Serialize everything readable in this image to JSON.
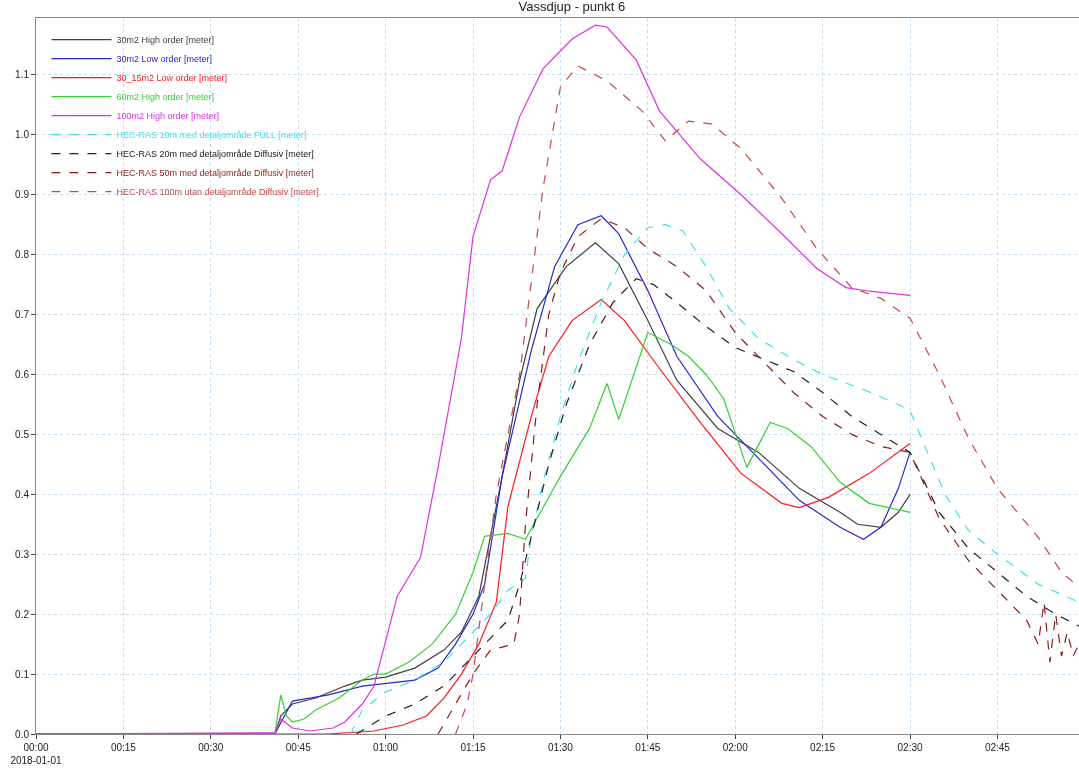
{
  "chart_data": {
    "type": "line",
    "title": "Vassdjup - punkt 6",
    "xlim": [
      "2018-01-01T00:00",
      "2018-01-01T02:59"
    ],
    "ylim": [
      0,
      1.195
    ],
    "xticks": [
      {
        "value": "2018-01-01T00:00",
        "label": "00:00\n2018-01-01"
      },
      {
        "value": "2018-01-01T00:15",
        "label": "00:15"
      },
      {
        "value": "2018-01-01T00:30",
        "label": "00:30"
      },
      {
        "value": "2018-01-01T00:45",
        "label": "00:45"
      },
      {
        "value": "2018-01-01T01:00",
        "label": "01:00"
      },
      {
        "value": "2018-01-01T01:15",
        "label": "01:15"
      },
      {
        "value": "2018-01-01T01:30",
        "label": "01:30"
      },
      {
        "value": "2018-01-01T01:45",
        "label": "01:45"
      },
      {
        "value": "2018-01-01T02:00",
        "label": "02:00"
      },
      {
        "value": "2018-01-01T02:15",
        "label": "02:15"
      },
      {
        "value": "2018-01-01T02:30",
        "label": "02:30"
      },
      {
        "value": "2018-01-01T02:45",
        "label": "02:45"
      }
    ],
    "yticks": [
      {
        "value": 0,
        "label": "0.0"
      },
      0.1,
      0.2,
      0.3,
      0.4,
      0.5,
      0.6,
      0.7,
      0.8,
      0.9,
      {
        "value": 1,
        "label": "1.0"
      },
      1.1
    ],
    "grid": true,
    "legend": "top left",
    "series": [
      {
        "name": "30m2 High order [meter]",
        "color": "#404040",
        "line_style": "solid",
        "x": [
          "2018-01-01T00:00",
          "2018-01-01T00:41",
          "2018-01-01T00:42",
          "2018-01-01T00:44",
          "2018-01-01T00:48",
          "2018-01-01T00:53",
          "2018-01-01T00:56",
          "2018-01-01T01:00",
          "2018-01-01T01:05",
          "2018-01-01T01:10",
          "2018-01-01T01:13",
          "2018-01-01T01:16",
          "2018-01-01T01:20",
          "2018-01-01T01:23",
          "2018-01-01T01:26",
          "2018-01-01T01:31",
          "2018-01-01T01:36",
          "2018-01-01T01:40",
          "2018-01-01T01:45",
          "2018-01-01T01:50",
          "2018-01-01T01:57",
          "2018-01-01T02:04",
          "2018-01-01T02:11",
          "2018-01-01T02:18",
          "2018-01-01T02:21",
          "2018-01-01T02:25",
          "2018-01-01T02:28",
          "2018-01-01T02:30"
        ],
        "values": [
          0,
          0,
          0.03,
          0.05,
          0.06,
          0.08,
          0.09,
          0.095,
          0.11,
          0.14,
          0.17,
          0.23,
          0.43,
          0.59,
          0.71,
          0.78,
          0.82,
          0.785,
          0.69,
          0.59,
          0.51,
          0.47,
          0.41,
          0.37,
          0.35,
          0.345,
          0.37,
          0.4
        ]
      },
      {
        "name": "30m2 Low order [meter]",
        "color": "#2828d0",
        "line_style": "solid",
        "x": [
          "2018-01-01T00:00",
          "2018-01-01T00:41",
          "2018-01-01T00:44",
          "2018-01-01T00:50",
          "2018-01-01T00:56",
          "2018-01-01T01:05",
          "2018-01-01T01:09",
          "2018-01-01T01:12",
          "2018-01-01T01:15",
          "2018-01-01T01:17",
          "2018-01-01T01:20",
          "2018-01-01T01:25",
          "2018-01-01T01:29",
          "2018-01-01T01:33",
          "2018-01-01T01:37",
          "2018-01-01T01:40",
          "2018-01-01T01:45",
          "2018-01-01T01:50",
          "2018-01-01T01:57",
          "2018-01-01T02:04",
          "2018-01-01T02:11",
          "2018-01-01T02:18",
          "2018-01-01T02:22",
          "2018-01-01T02:25",
          "2018-01-01T02:28",
          "2018-01-01T02:30"
        ],
        "values": [
          0,
          0,
          0.055,
          0.065,
          0.08,
          0.09,
          0.11,
          0.15,
          0.2,
          0.25,
          0.43,
          0.64,
          0.78,
          0.85,
          0.865,
          0.835,
          0.74,
          0.63,
          0.53,
          0.46,
          0.39,
          0.345,
          0.325,
          0.345,
          0.41,
          0.47
        ]
      },
      {
        "name": "30_15m2 Low order [meter]",
        "color": "#ff1a1a",
        "line_style": "solid",
        "x": [
          "2018-01-01T00:00",
          "2018-01-01T00:50",
          "2018-01-01T00:58",
          "2018-01-01T01:03",
          "2018-01-01T01:07",
          "2018-01-01T01:10",
          "2018-01-01T01:13",
          "2018-01-01T01:16",
          "2018-01-01T01:19",
          "2018-01-01T01:21",
          "2018-01-01T01:25",
          "2018-01-01T01:28",
          "2018-01-01T01:32",
          "2018-01-01T01:37",
          "2018-01-01T01:41",
          "2018-01-01T01:47",
          "2018-01-01T01:54",
          "2018-01-01T02:01",
          "2018-01-01T02:08",
          "2018-01-01T02:11",
          "2018-01-01T02:16",
          "2018-01-01T02:23",
          "2018-01-01T02:30"
        ],
        "values": [
          0,
          0,
          0.005,
          0.015,
          0.03,
          0.06,
          0.1,
          0.15,
          0.22,
          0.38,
          0.53,
          0.63,
          0.69,
          0.725,
          0.69,
          0.61,
          0.52,
          0.435,
          0.385,
          0.378,
          0.395,
          0.435,
          0.485
        ]
      },
      {
        "name": "60m2 High order [meter]",
        "color": "#35d035",
        "line_style": "solid",
        "x": [
          "2018-01-01T00:00",
          "2018-01-01T00:41",
          "2018-01-01T00:42",
          "2018-01-01T00:43",
          "2018-01-01T00:44",
          "2018-01-01T00:46",
          "2018-01-01T00:48",
          "2018-01-01T00:52",
          "2018-01-01T00:56",
          "2018-01-01T00:58",
          "2018-01-01T01:00",
          "2018-01-01T01:04",
          "2018-01-01T01:08",
          "2018-01-01T01:12",
          "2018-01-01T01:15",
          "2018-01-01T01:17",
          "2018-01-01T01:21",
          "2018-01-01T01:24",
          "2018-01-01T01:30",
          "2018-01-01T01:35",
          "2018-01-01T01:38",
          "2018-01-01T01:40",
          "2018-01-01T01:45",
          "2018-01-01T01:49",
          "2018-01-01T01:52",
          "2018-01-01T01:55",
          "2018-01-01T01:58",
          "2018-01-01T02:02",
          "2018-01-01T02:06",
          "2018-01-01T02:09",
          "2018-01-01T02:13",
          "2018-01-01T02:18",
          "2018-01-01T02:23",
          "2018-01-01T02:30"
        ],
        "values": [
          0,
          0,
          0.065,
          0.03,
          0.02,
          0.025,
          0.04,
          0.06,
          0.09,
          0.1,
          0.1,
          0.12,
          0.15,
          0.2,
          0.27,
          0.33,
          0.335,
          0.325,
          0.43,
          0.51,
          0.585,
          0.525,
          0.67,
          0.65,
          0.63,
          0.6,
          0.56,
          0.445,
          0.52,
          0.51,
          0.48,
          0.42,
          0.385,
          0.37
        ]
      },
      {
        "name": "100m2 High order [meter]",
        "color": "#e030e0",
        "line_style": "solid",
        "x": [
          "2018-01-01T00:00",
          "2018-01-01T00:41",
          "2018-01-01T00:42",
          "2018-01-01T00:44",
          "2018-01-01T00:47",
          "2018-01-01T00:51",
          "2018-01-01T00:53",
          "2018-01-01T00:56",
          "2018-01-01T00:58",
          "2018-01-01T01:02",
          "2018-01-01T01:06",
          "2018-01-01T01:09",
          "2018-01-01T01:13",
          "2018-01-01T01:15",
          "2018-01-01T01:18",
          "2018-01-01T01:20",
          "2018-01-01T01:23",
          "2018-01-01T01:27",
          "2018-01-01T01:32",
          "2018-01-01T01:36",
          "2018-01-01T01:38",
          "2018-01-01T01:43",
          "2018-01-01T01:47",
          "2018-01-01T01:54",
          "2018-01-01T02:01",
          "2018-01-01T02:08",
          "2018-01-01T02:14",
          "2018-01-01T02:19",
          "2018-01-01T02:23",
          "2018-01-01T02:30"
        ],
        "values": [
          0,
          0.002,
          0.025,
          0.01,
          0.005,
          0.01,
          0.02,
          0.05,
          0.08,
          0.23,
          0.295,
          0.445,
          0.66,
          0.83,
          0.925,
          0.94,
          1.03,
          1.11,
          1.16,
          1.183,
          1.18,
          1.125,
          1.04,
          0.96,
          0.9,
          0.835,
          0.777,
          0.745,
          0.739,
          0.732
        ]
      },
      {
        "name": "HEC-RAS 10m med detaljområde FULL [meter]",
        "color": "#40e0e8",
        "line_style": "dashed",
        "x": [
          "2018-01-01T00:54",
          "2018-01-01T00:56",
          "2018-01-01T01:00",
          "2018-01-01T01:05",
          "2018-01-01T01:10",
          "2018-01-01T01:14",
          "2018-01-01T01:18",
          "2018-01-01T01:21",
          "2018-01-01T01:24",
          "2018-01-01T01:25",
          "2018-01-01T01:27",
          "2018-01-01T01:30",
          "2018-01-01T01:33",
          "2018-01-01T01:37",
          "2018-01-01T01:41",
          "2018-01-01T01:45",
          "2018-01-01T01:48",
          "2018-01-01T01:51",
          "2018-01-01T01:55",
          "2018-01-01T01:59",
          "2018-01-01T02:04",
          "2018-01-01T02:10",
          "2018-01-01T02:15",
          "2018-01-01T02:22",
          "2018-01-01T02:28",
          "2018-01-01T02:30",
          "2018-01-01T02:33",
          "2018-01-01T02:36",
          "2018-01-01T02:40",
          "2018-01-01T02:45",
          "2018-01-01T02:52",
          "2018-01-01T02:59"
        ],
        "values": [
          0,
          0.04,
          0.07,
          0.09,
          0.12,
          0.16,
          0.2,
          0.24,
          0.26,
          0.33,
          0.42,
          0.53,
          0.62,
          0.72,
          0.8,
          0.845,
          0.85,
          0.84,
          0.78,
          0.71,
          0.66,
          0.625,
          0.6,
          0.575,
          0.55,
          0.54,
          0.47,
          0.4,
          0.34,
          0.3,
          0.25,
          0.22
        ]
      },
      {
        "name": "HEC-RAS 20m med detaljområde Diffusiv [meter]",
        "color": "#202020",
        "line_style": "dashed",
        "x": [
          "2018-01-01T00:55",
          "2018-01-01T01:00",
          "2018-01-01T01:05",
          "2018-01-01T01:10",
          "2018-01-01T01:14",
          "2018-01-01T01:18",
          "2018-01-01T01:21",
          "2018-01-01T01:23",
          "2018-01-01T01:25",
          "2018-01-01T01:28",
          "2018-01-01T01:31",
          "2018-01-01T01:35",
          "2018-01-01T01:39",
          "2018-01-01T01:43",
          "2018-01-01T01:46",
          "2018-01-01T01:50",
          "2018-01-01T01:55",
          "2018-01-01T02:00",
          "2018-01-01T02:05",
          "2018-01-01T02:10",
          "2018-01-01T02:15",
          "2018-01-01T02:20",
          "2018-01-01T02:25",
          "2018-01-01T02:30",
          "2018-01-01T02:35",
          "2018-01-01T02:40",
          "2018-01-01T02:45",
          "2018-01-01T02:50",
          "2018-01-01T02:55",
          "2018-01-01T02:59"
        ],
        "values": [
          0,
          0.03,
          0.05,
          0.08,
          0.12,
          0.16,
          0.19,
          0.25,
          0.33,
          0.45,
          0.55,
          0.65,
          0.72,
          0.76,
          0.75,
          0.72,
          0.68,
          0.645,
          0.625,
          0.605,
          0.57,
          0.53,
          0.5,
          0.47,
          0.37,
          0.31,
          0.27,
          0.23,
          0.2,
          0.18
        ]
      },
      {
        "name": "HEC-RAS 50m med detaljområde Diffusiv [meter]",
        "color": "#8b1c1c",
        "line_style": "dashed",
        "x": [
          "2018-01-01T01:09",
          "2018-01-01T01:12",
          "2018-01-01T01:15",
          "2018-01-01T01:18",
          "2018-01-01T01:22",
          "2018-01-01T01:23",
          "2018-01-01T01:24",
          "2018-01-01T01:26",
          "2018-01-01T01:28",
          "2018-01-01T01:30",
          "2018-01-01T01:33",
          "2018-01-01T01:37",
          "2018-01-01T01:41",
          "2018-01-01T01:45",
          "2018-01-01T01:50",
          "2018-01-01T01:55",
          "2018-01-01T02:00",
          "2018-01-01T02:05",
          "2018-01-01T02:10",
          "2018-01-01T02:15",
          "2018-01-01T02:20",
          "2018-01-01T02:25",
          "2018-01-01T02:30",
          "2018-01-01T02:35",
          "2018-01-01T02:40",
          "2018-01-01T02:45",
          "2018-01-01T02:50",
          "2018-01-01T02:52",
          "2018-01-01T02:53",
          "2018-01-01T02:54",
          "2018-01-01T02:55",
          "2018-01-01T02:56",
          "2018-01-01T02:57",
          "2018-01-01T02:58",
          "2018-01-01T02:59"
        ],
        "values": [
          0,
          0.05,
          0.1,
          0.14,
          0.15,
          0.2,
          0.35,
          0.55,
          0.7,
          0.77,
          0.83,
          0.86,
          0.845,
          0.81,
          0.78,
          0.74,
          0.67,
          0.62,
          0.57,
          0.53,
          0.5,
          0.48,
          0.47,
          0.36,
          0.29,
          0.24,
          0.19,
          0.15,
          0.22,
          0.12,
          0.2,
          0.13,
          0.17,
          0.13,
          0.15
        ]
      },
      {
        "name": "HEC-RAS 100m utan detaljområde Diffusiv [meter]",
        "color": "#c84848",
        "line_style": "dashed",
        "x": [
          "2018-01-01T01:12",
          "2018-01-01T01:14",
          "2018-01-01T01:15",
          "2018-01-01T01:17",
          "2018-01-01T01:19",
          "2018-01-01T01:23",
          "2018-01-01T01:27",
          "2018-01-01T01:30",
          "2018-01-01T01:33",
          "2018-01-01T01:38",
          "2018-01-01T01:44",
          "2018-01-01T01:48",
          "2018-01-01T01:52",
          "2018-01-01T01:56",
          "2018-01-01T02:01",
          "2018-01-01T02:08",
          "2018-01-01T02:14",
          "2018-01-01T02:20",
          "2018-01-01T02:25",
          "2018-01-01T02:30",
          "2018-01-01T02:35",
          "2018-01-01T02:40",
          "2018-01-01T02:45",
          "2018-01-01T02:52",
          "2018-01-01T02:56",
          "2018-01-01T02:59"
        ],
        "values": [
          0,
          0.05,
          0.1,
          0.25,
          0.4,
          0.6,
          0.91,
          1.08,
          1.115,
          1.09,
          1.04,
          0.99,
          1.023,
          1.018,
          0.977,
          0.894,
          0.81,
          0.745,
          0.727,
          0.694,
          0.6,
          0.494,
          0.41,
          0.328,
          0.27,
          0.245
        ]
      }
    ]
  }
}
